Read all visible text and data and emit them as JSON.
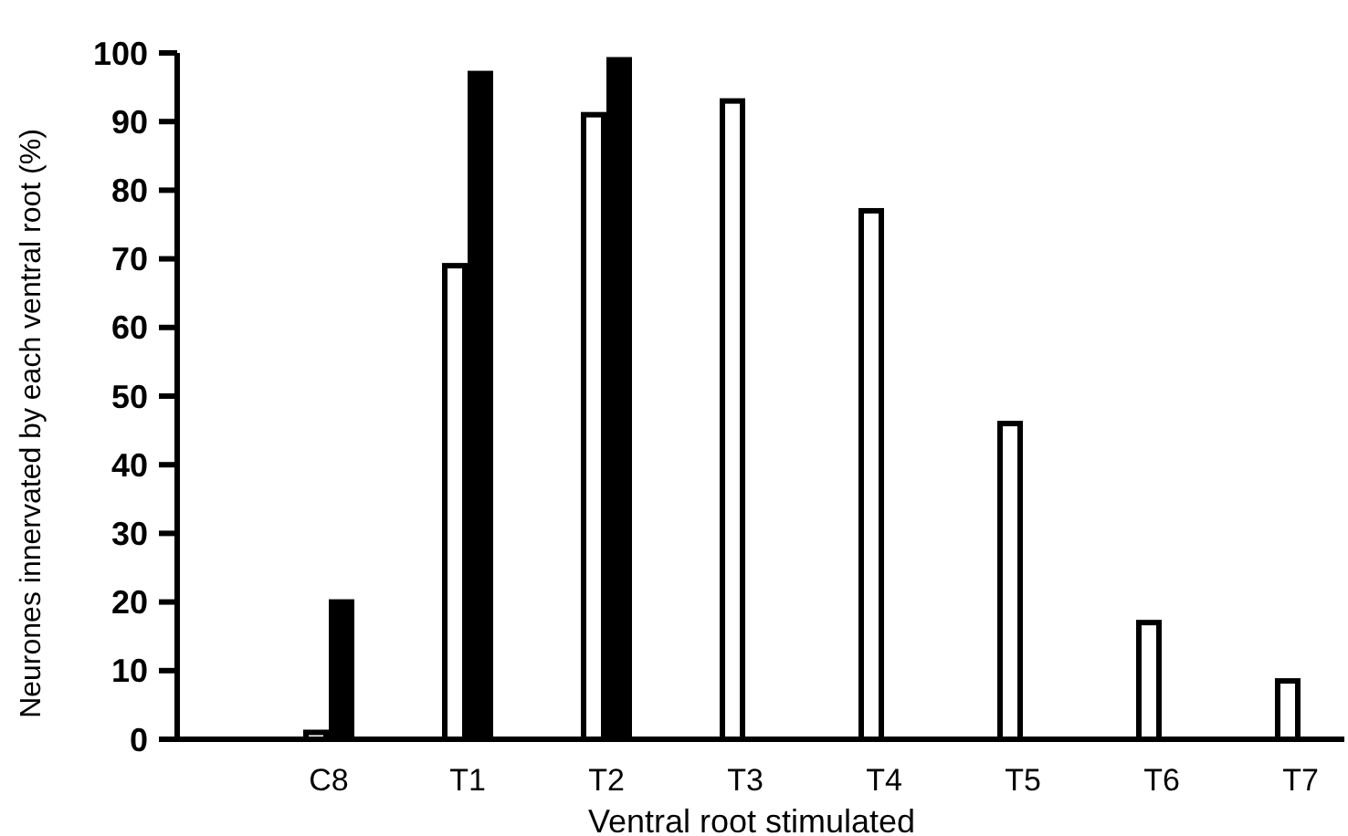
{
  "chart_data": {
    "type": "bar",
    "xlabel": "Ventral root stimulated",
    "ylabel": "Neurones innervated by each ventral root (%)",
    "categories": [
      "C8",
      "T1",
      "T2",
      "T3",
      "T4",
      "T5",
      "T6",
      "T7"
    ],
    "series": [
      {
        "color": "#ffffff",
        "values": [
          1,
          69,
          91,
          93,
          77,
          46,
          17,
          8.5
        ]
      },
      {
        "color": "#000000",
        "values": [
          20,
          97,
          99,
          null,
          null,
          null,
          null,
          null
        ]
      }
    ],
    "ylim": [
      0,
      100
    ],
    "yticks": [
      0,
      10,
      20,
      30,
      40,
      50,
      60,
      70,
      80,
      90,
      100
    ],
    "grid": false
  }
}
